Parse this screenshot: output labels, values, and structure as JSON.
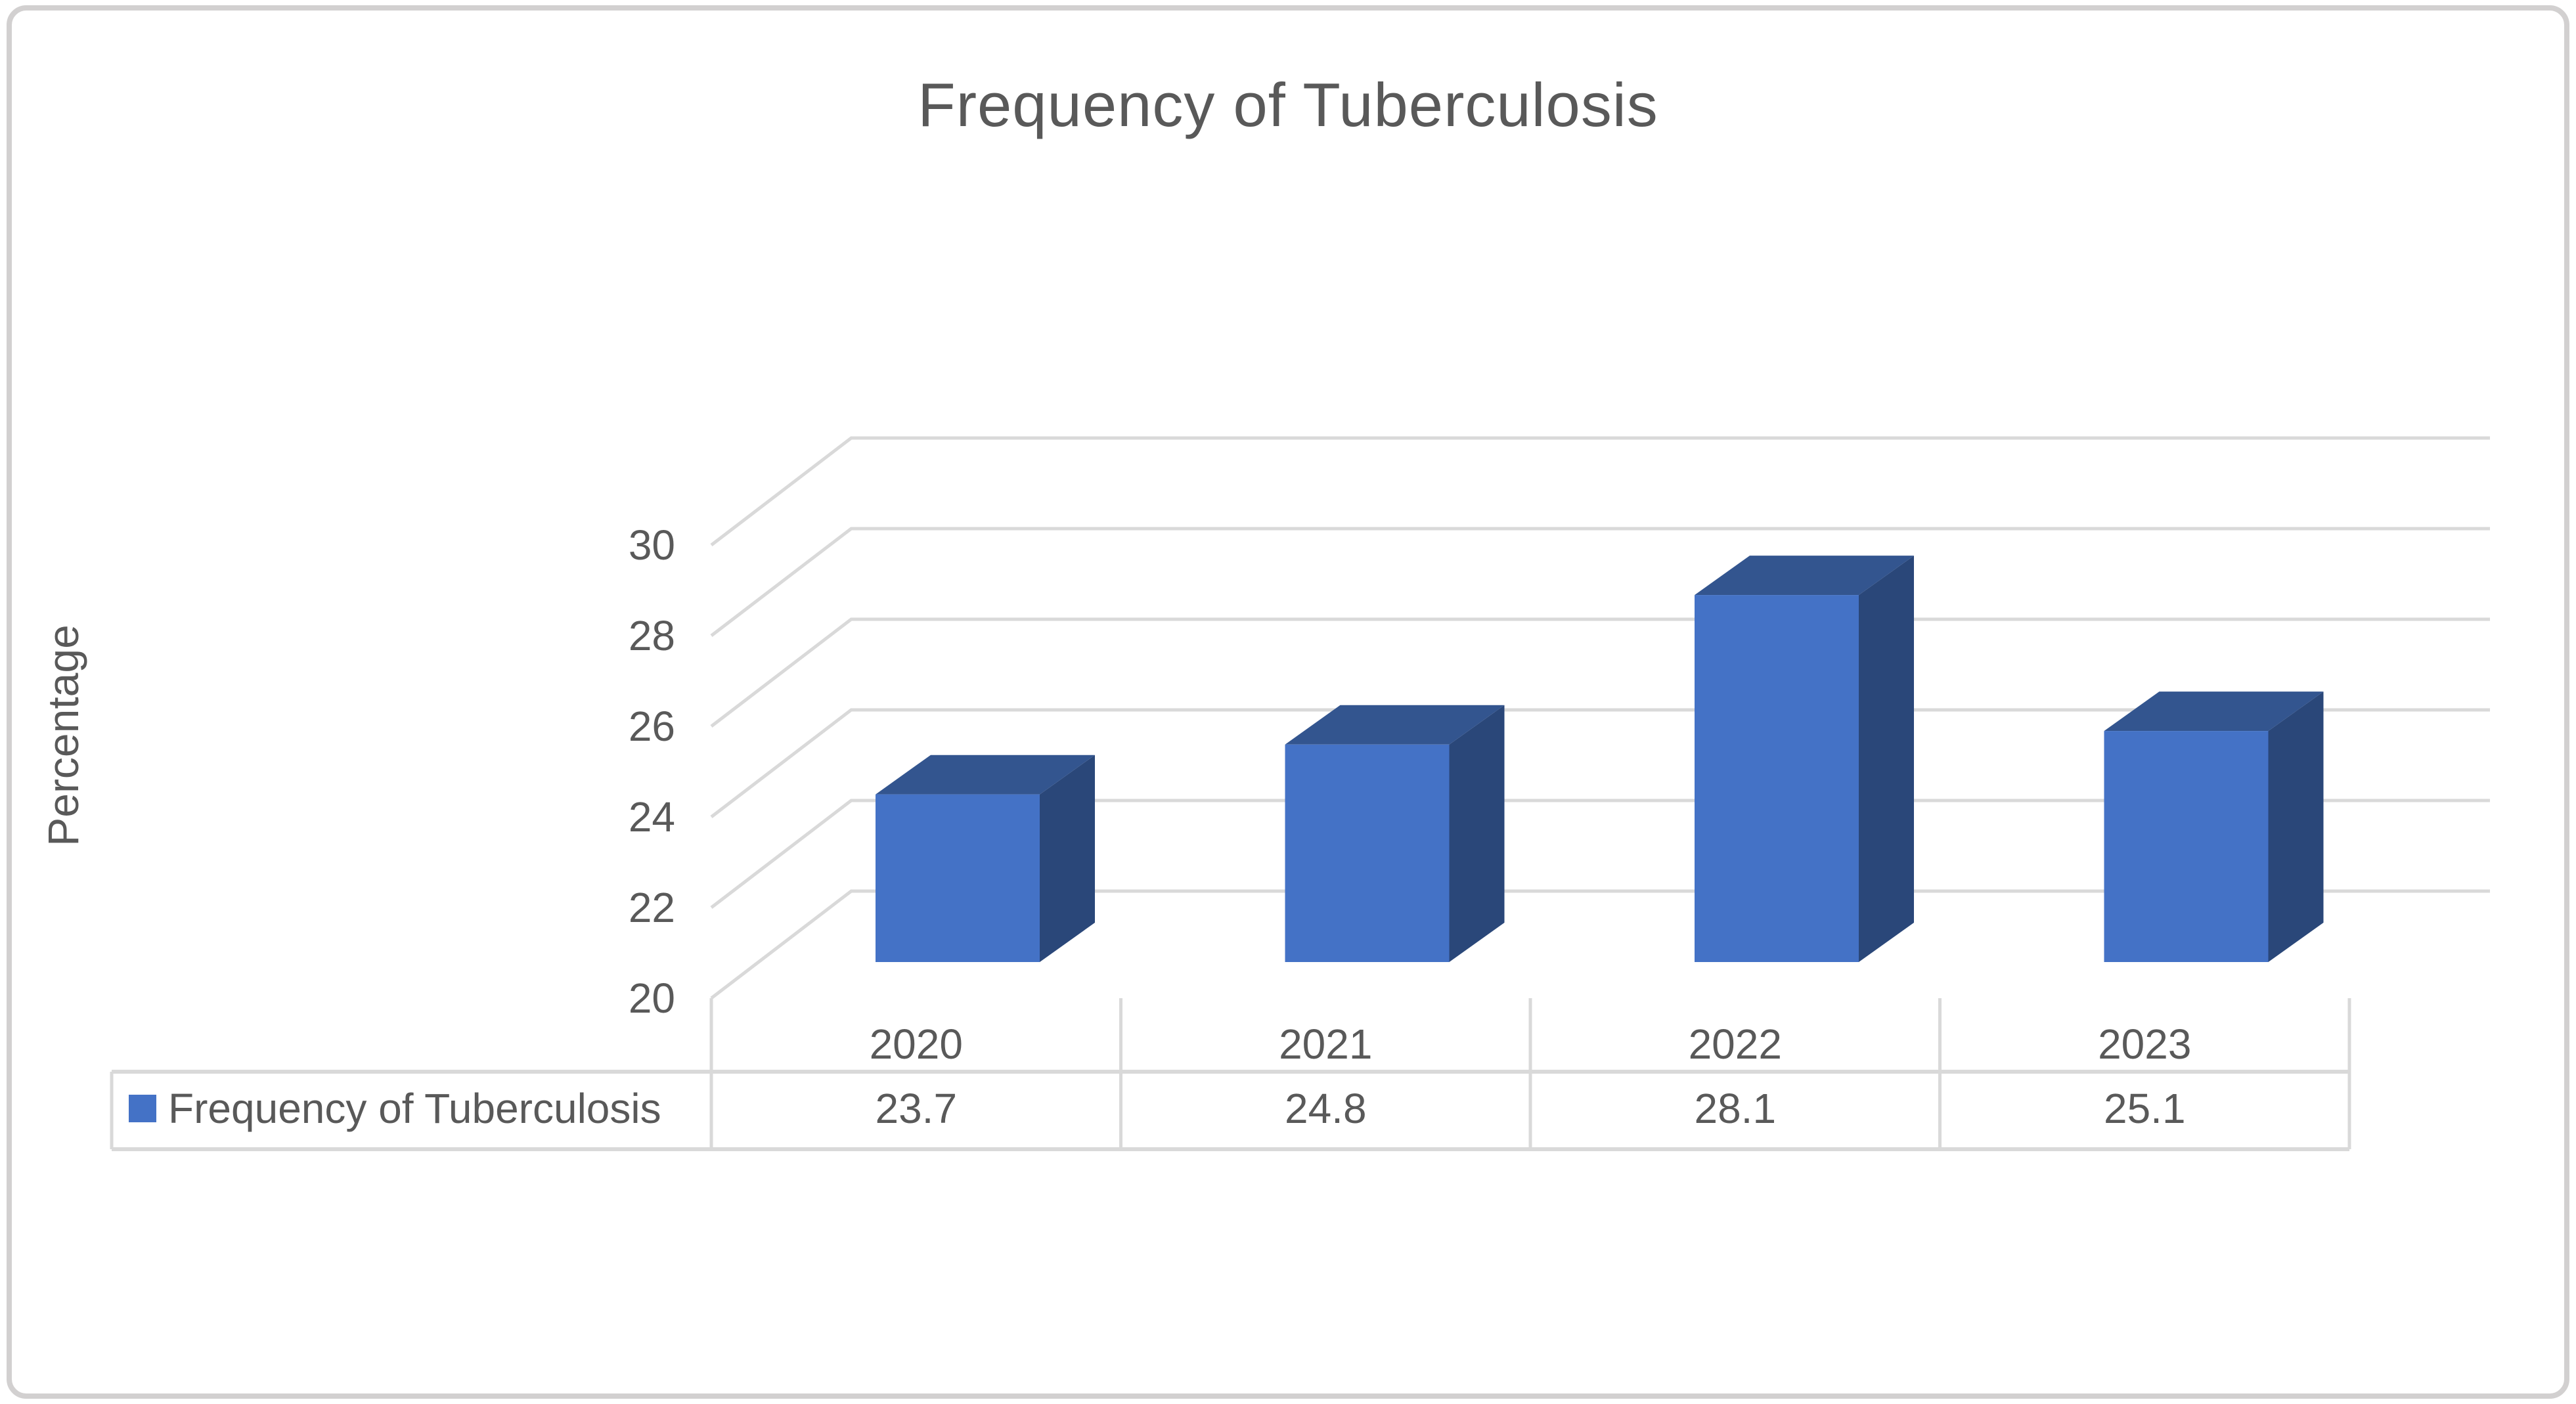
{
  "title": "Frequency of Tuberculosis",
  "chart_data": {
    "type": "bar",
    "projection": "3d-column",
    "title": "Frequency of Tuberculosis",
    "xlabel": "",
    "ylabel": "Percentage",
    "categories": [
      "2020",
      "2021",
      "2022",
      "2023"
    ],
    "series": [
      {
        "name": "Frequency of Tuberculosis",
        "values": [
          23.7,
          24.8,
          28.1,
          25.1
        ]
      }
    ],
    "data_table_values": [
      "23.7",
      "24.8",
      "28.1",
      "25.1"
    ],
    "ylim": [
      20,
      30
    ],
    "yticks": [
      20,
      22,
      24,
      26,
      28,
      30
    ],
    "grid": true,
    "legend_position": "bottom-left-table",
    "colors": {
      "bar_front": "#4472C6",
      "bar_top": "#33558F",
      "bar_side": "#2A4779",
      "gridline": "#D9D9D9",
      "table_border": "#D9D9D9",
      "text": "#595959",
      "frame_border": "#D2D0D0"
    }
  }
}
